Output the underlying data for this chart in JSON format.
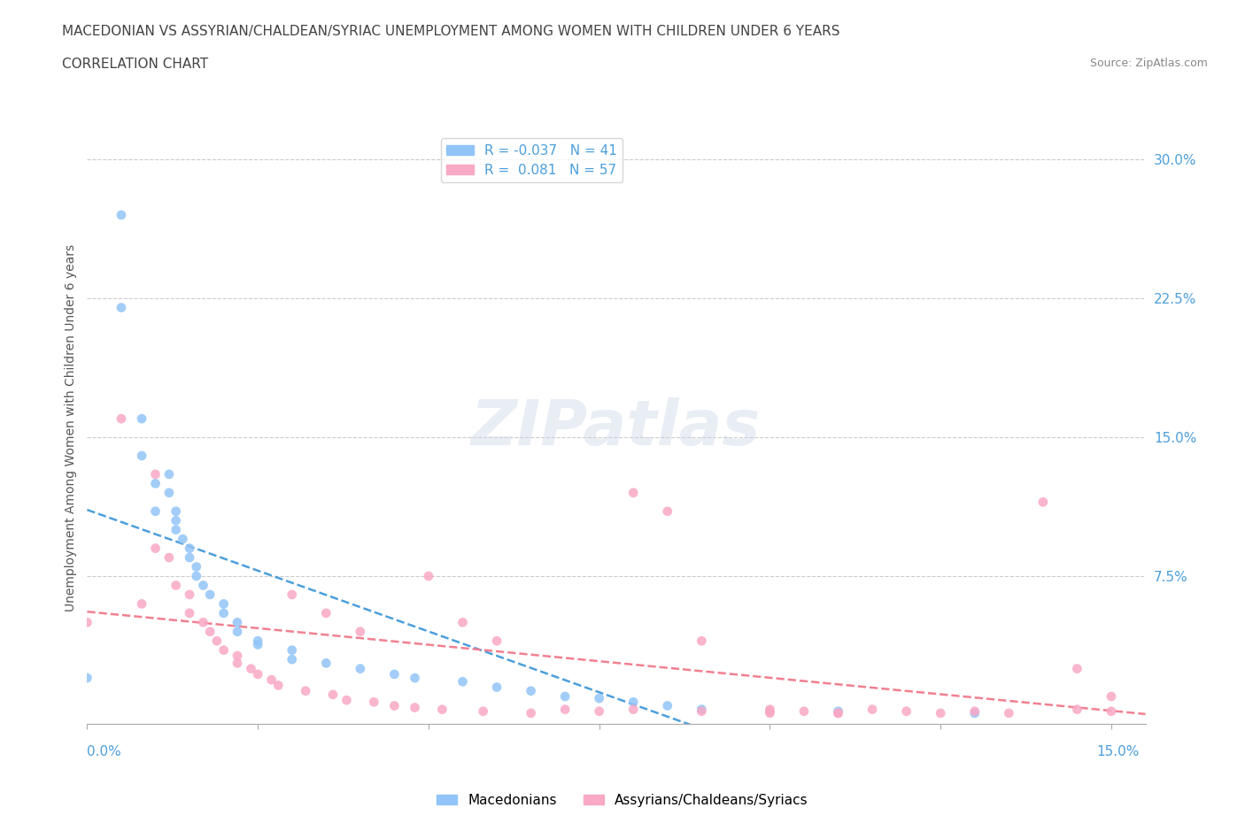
{
  "title_line1": "MACEDONIAN VS ASSYRIAN/CHALDEAN/SYRIAC UNEMPLOYMENT AMONG WOMEN WITH CHILDREN UNDER 6 YEARS",
  "title_line2": "CORRELATION CHART",
  "source": "Source: ZipAtlas.com",
  "ylabel": "Unemployment Among Women with Children Under 6 years",
  "yticks": [
    0.0,
    0.075,
    0.15,
    0.225,
    0.3
  ],
  "ytick_labels": [
    "",
    "7.5%",
    "15.0%",
    "22.5%",
    "30.0%"
  ],
  "xticks": [
    0.0,
    0.025,
    0.05,
    0.075,
    0.1,
    0.125,
    0.15
  ],
  "xlim": [
    0.0,
    0.155
  ],
  "ylim": [
    -0.005,
    0.315
  ],
  "macedonian_R": -0.037,
  "macedonian_N": 41,
  "assyrian_R": 0.081,
  "assyrian_N": 57,
  "legend_label_blue": "Macedonians",
  "legend_label_pink": "Assyrians/Chaldeans/Syriacs",
  "blue_color": "#92C5F7",
  "pink_color": "#F9A8C5",
  "blue_line_color": "#4D9FDB",
  "pink_line_color": "#F08090",
  "watermark": "ZIPatlas",
  "macedonian_x": [
    0.0,
    0.005,
    0.005,
    0.008,
    0.008,
    0.01,
    0.01,
    0.012,
    0.012,
    0.013,
    0.013,
    0.013,
    0.014,
    0.015,
    0.015,
    0.016,
    0.016,
    0.017,
    0.018,
    0.02,
    0.02,
    0.022,
    0.022,
    0.025,
    0.025,
    0.03,
    0.03,
    0.035,
    0.04,
    0.045,
    0.048,
    0.055,
    0.06,
    0.065,
    0.07,
    0.075,
    0.08,
    0.085,
    0.09,
    0.11,
    0.13
  ],
  "macedonian_y": [
    0.02,
    0.27,
    0.22,
    0.16,
    0.14,
    0.125,
    0.11,
    0.13,
    0.12,
    0.11,
    0.105,
    0.1,
    0.095,
    0.09,
    0.085,
    0.08,
    0.075,
    0.07,
    0.065,
    0.06,
    0.055,
    0.05,
    0.045,
    0.04,
    0.038,
    0.035,
    0.03,
    0.028,
    0.025,
    0.022,
    0.02,
    0.018,
    0.015,
    0.013,
    0.01,
    0.009,
    0.007,
    0.005,
    0.003,
    0.002,
    0.001
  ],
  "assyrian_x": [
    0.0,
    0.005,
    0.008,
    0.01,
    0.01,
    0.012,
    0.013,
    0.015,
    0.015,
    0.017,
    0.018,
    0.019,
    0.02,
    0.022,
    0.022,
    0.024,
    0.025,
    0.027,
    0.028,
    0.03,
    0.032,
    0.035,
    0.036,
    0.038,
    0.04,
    0.042,
    0.045,
    0.048,
    0.05,
    0.052,
    0.055,
    0.058,
    0.06,
    0.065,
    0.07,
    0.075,
    0.08,
    0.085,
    0.09,
    0.1,
    0.105,
    0.11,
    0.115,
    0.12,
    0.125,
    0.13,
    0.135,
    0.14,
    0.145,
    0.145,
    0.15,
    0.15,
    0.08,
    0.09,
    0.1,
    0.1,
    0.11
  ],
  "assyrian_y": [
    0.05,
    0.16,
    0.06,
    0.13,
    0.09,
    0.085,
    0.07,
    0.065,
    0.055,
    0.05,
    0.045,
    0.04,
    0.035,
    0.032,
    0.028,
    0.025,
    0.022,
    0.019,
    0.016,
    0.065,
    0.013,
    0.055,
    0.011,
    0.008,
    0.045,
    0.007,
    0.005,
    0.004,
    0.075,
    0.003,
    0.05,
    0.002,
    0.04,
    0.001,
    0.003,
    0.002,
    0.12,
    0.11,
    0.002,
    0.003,
    0.002,
    0.001,
    0.003,
    0.002,
    0.001,
    0.002,
    0.001,
    0.115,
    0.025,
    0.003,
    0.01,
    0.002,
    0.003,
    0.04,
    0.002,
    0.001,
    0.001
  ]
}
